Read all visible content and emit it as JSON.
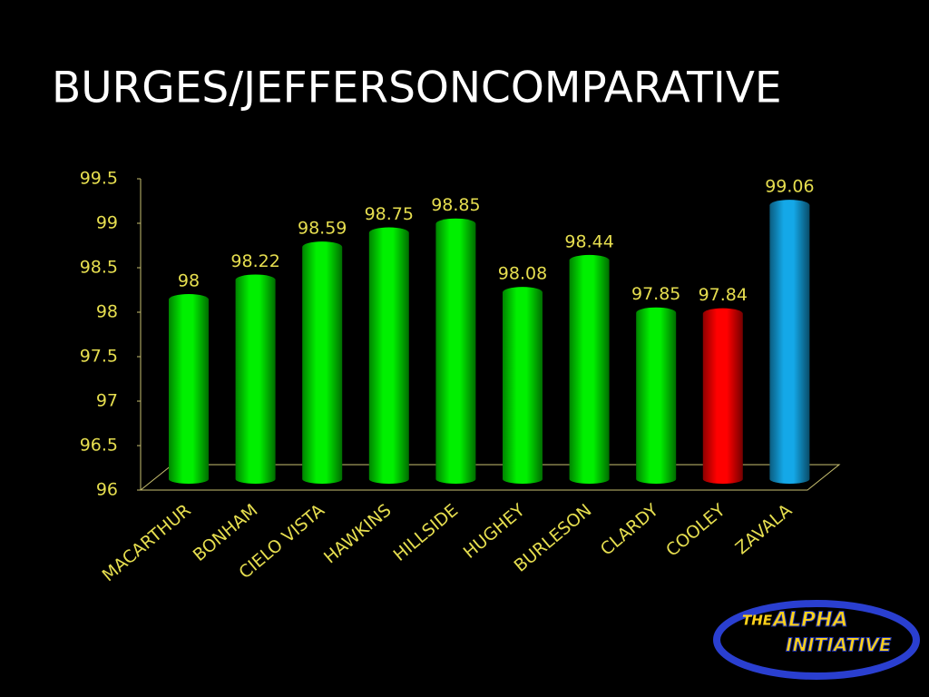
{
  "chart_data": {
    "type": "bar",
    "title": "BURGES/JEFFERSONCOMPARATIVE",
    "categories": [
      "MACARTHUR",
      "BONHAM",
      "CIELO VISTA",
      "HAWKINS",
      "HILLSIDE",
      "HUGHEY",
      "BURLESON",
      "CLARDY",
      "COOLEY",
      "ZAVALA"
    ],
    "values": [
      98,
      98.22,
      98.59,
      98.75,
      98.85,
      98.08,
      98.44,
      97.85,
      97.84,
      99.06
    ],
    "colors": [
      "#00f000",
      "#00f000",
      "#00f000",
      "#00f000",
      "#00f000",
      "#00f000",
      "#00f000",
      "#00f000",
      "#ff0000",
      "#14a8e8"
    ],
    "ylim": [
      96,
      99.5
    ],
    "yticks": [
      96,
      96.5,
      97,
      97.5,
      98,
      98.5,
      99,
      99.5
    ]
  },
  "logo": {
    "lines": [
      "THE",
      "ALPHA",
      "INITIATIVE"
    ]
  }
}
